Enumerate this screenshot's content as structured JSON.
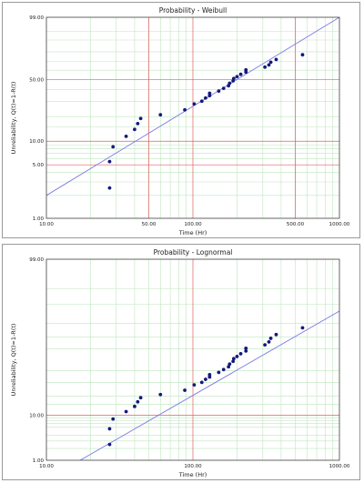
{
  "chart_data": [
    {
      "type": "scatter",
      "title": "Probability - Weibull",
      "xlabel": "Time (Hr)",
      "ylabel": "Unreliability, Q(t)=1-R(t)",
      "x_scale": "log",
      "y_scale": "weibull",
      "xlim": [
        10,
        1000
      ],
      "ylim": [
        1,
        99
      ],
      "grid": true,
      "x_ticks": [
        10,
        50,
        100,
        500,
        1000
      ],
      "x_tick_labels": [
        "10.00",
        "50.00",
        "100.00",
        "500.00",
        "1000.00"
      ],
      "y_ticks": [
        1,
        5,
        10,
        50,
        99
      ],
      "y_tick_labels": [
        "1.00",
        "5.00",
        "10.00",
        "50.00",
        "99.00"
      ],
      "fit_line": {
        "x": [
          10,
          1000
        ],
        "y": [
          2.0,
          99
        ]
      },
      "series": [
        {
          "x": [
            27,
            27,
            28.5,
            35,
            40,
            42,
            44,
            60,
            88,
            102,
            115,
            122,
            130,
            130,
            150,
            162,
            175,
            178,
            188,
            190,
            200,
            212,
            230,
            230,
            310,
            330,
            340,
            370,
            560
          ],
          "y": [
            2.5,
            5.5,
            8.5,
            11.5,
            14,
            16.5,
            19,
            21,
            24,
            28,
            30,
            32.5,
            34.5,
            36.5,
            38.5,
            41,
            43.5,
            46,
            48.5,
            51,
            53,
            55.5,
            58,
            60.5,
            63.5,
            66,
            69,
            72,
            77
          ]
        }
      ]
    },
    {
      "type": "scatter",
      "title": "Probability - Lognormal",
      "xlabel": "Time (Hr)",
      "ylabel": "Unreliability, Q(t)=1-R(t)",
      "x_scale": "log",
      "y_scale": "normal",
      "xlim": [
        10,
        1000
      ],
      "ylim": [
        1,
        99
      ],
      "grid": true,
      "x_ticks": [
        10,
        100,
        1000
      ],
      "x_tick_labels": [
        "10.00",
        "100.00",
        "1000.00"
      ],
      "y_ticks": [
        1,
        10,
        99
      ],
      "y_tick_labels": [
        "1.00",
        "10.00",
        "99.00"
      ],
      "fit_line": {
        "x": [
          17,
          1000
        ],
        "y": [
          1,
          87
        ]
      },
      "series": [
        {
          "x": [
            27,
            27,
            28.5,
            35,
            40,
            42,
            44,
            60,
            88,
            102,
            115,
            122,
            130,
            130,
            150,
            162,
            175,
            178,
            188,
            190,
            200,
            212,
            230,
            230,
            310,
            330,
            340,
            370,
            560
          ],
          "y": [
            2.5,
            5.5,
            8.5,
            11.5,
            14,
            16.5,
            19,
            21,
            24,
            28,
            30,
            32.5,
            34.5,
            36.5,
            38.5,
            41,
            43.5,
            46,
            48.5,
            51,
            53,
            55.5,
            58,
            60.5,
            63.5,
            66,
            69,
            72,
            77
          ]
        }
      ]
    }
  ],
  "colors": {
    "points": "#141a7a",
    "fit_line": "#7878e6",
    "major_grid": "#e06060",
    "minor_grid": "#bfe6bf",
    "plot_border": "#404040"
  }
}
